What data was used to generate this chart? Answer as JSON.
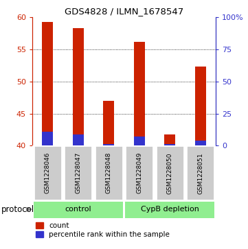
{
  "title": "GDS4828 / ILMN_1678547",
  "samples": [
    "GSM1228046",
    "GSM1228047",
    "GSM1228048",
    "GSM1228049",
    "GSM1228050",
    "GSM1228051"
  ],
  "red_values": [
    59.3,
    58.3,
    47.0,
    56.2,
    41.8,
    52.3
  ],
  "blue_values": [
    42.2,
    41.7,
    40.3,
    41.4,
    40.2,
    40.8
  ],
  "ylim": [
    40,
    60
  ],
  "yticks": [
    40,
    45,
    50,
    55,
    60
  ],
  "right_ytick_vals": [
    0,
    25,
    50,
    75,
    100
  ],
  "right_yticklabels": [
    "0",
    "25",
    "50",
    "75",
    "100%"
  ],
  "group_labels": [
    "control",
    "CypB depletion"
  ],
  "group_color": "#90EE90",
  "protocol_label": "protocol",
  "bar_color_red": "#CC2200",
  "bar_color_blue": "#3333CC",
  "bar_width": 0.35,
  "left_tick_color": "#CC2200",
  "right_tick_color": "#3333CC",
  "sample_box_color": "#CCCCCC",
  "legend_red": "count",
  "legend_blue": "percentile rank within the sample",
  "fig_width": 3.61,
  "fig_height": 3.63,
  "dpi": 100
}
